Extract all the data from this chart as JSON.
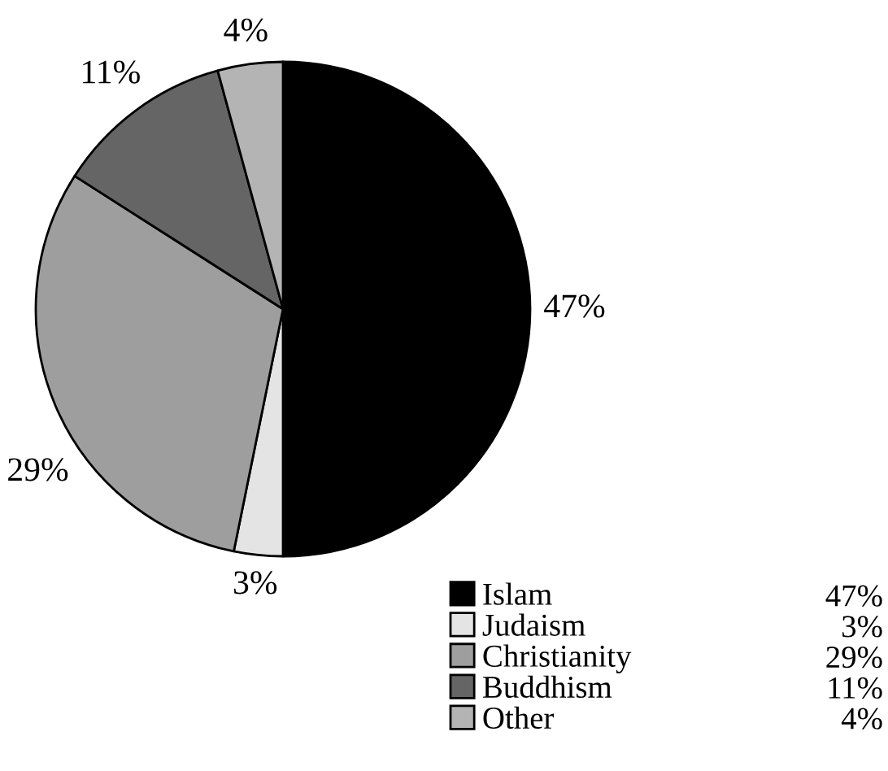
{
  "chart_data": {
    "type": "pie",
    "categories": [
      "Islam",
      "Judaism",
      "Christianity",
      "Buddhism",
      "Other"
    ],
    "values": [
      47,
      3,
      29,
      11,
      4
    ],
    "colors": [
      "#000000",
      "#e4e4e4",
      "#9e9e9f",
      "#656565",
      "#b4b4b5"
    ],
    "value_labels": [
      "47%",
      "3%",
      "29%",
      "11%",
      "4%"
    ],
    "legend": "bottom right"
  }
}
